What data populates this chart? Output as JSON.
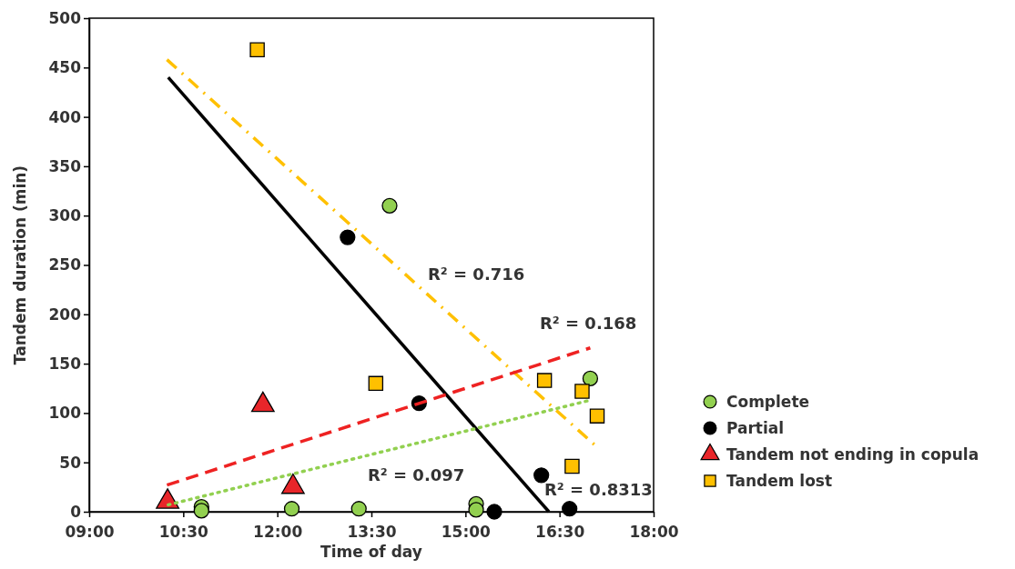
{
  "chart_data": {
    "type": "scatter",
    "xlabel": "Time of day",
    "ylabel": "Tandem duration (min)",
    "xlim": [
      9,
      18
    ],
    "xticks": [
      {
        "value": 9,
        "label": "09:00"
      },
      {
        "value": 10.5,
        "label": "10:30"
      },
      {
        "value": 12,
        "label": "12:00"
      },
      {
        "value": 13.5,
        "label": "13:30"
      },
      {
        "value": 15,
        "label": "15:00"
      },
      {
        "value": 16.5,
        "label": "16:30"
      },
      {
        "value": 18,
        "label": "18:00"
      }
    ],
    "ylim": [
      0,
      500
    ],
    "yticks": [
      0,
      50,
      100,
      150,
      200,
      250,
      300,
      350,
      400,
      450,
      500
    ],
    "legend": "right",
    "grid": false,
    "series": [
      {
        "name": "Complete",
        "marker": "circle",
        "color": "#92d050",
        "x": [
          10.79,
          10.79,
          12.23,
          13.3,
          15.17,
          15.17,
          16.99,
          13.79
        ],
        "values": [
          5,
          1,
          3,
          3,
          8,
          2,
          135,
          310
        ]
      },
      {
        "name": "Partial",
        "marker": "circle",
        "color": "#000000",
        "x": [
          13.12,
          14.26,
          15.46,
          16.21,
          16.66
        ],
        "values": [
          278,
          110,
          0,
          37,
          3
        ]
      },
      {
        "name": "Tandem not ending in copula",
        "marker": "triangle",
        "color": "#e8262a",
        "x": [
          10.25,
          11.77,
          12.25
        ],
        "values": [
          12,
          110,
          27
        ]
      },
      {
        "name": "Tandem lost",
        "marker": "square",
        "color": "#ffc000",
        "x": [
          11.68,
          13.57,
          16.26,
          16.86,
          17.1,
          16.7
        ],
        "values": [
          468,
          130,
          133,
          122,
          97,
          46
        ]
      },
      {
        "type": "line",
        "line_style": "solid",
        "color": "#000000",
        "x": [
          10.26,
          16.33
        ],
        "values": [
          440,
          0
        ]
      },
      {
        "type": "line",
        "line_style": "dashdot",
        "color": "#ffc000",
        "x": [
          10.24,
          17.09
        ],
        "values": [
          458,
          66
        ]
      },
      {
        "type": "line",
        "line_style": "dashed",
        "color": "#ee2222",
        "x": [
          10.24,
          16.99
        ],
        "values": [
          27,
          166
        ]
      },
      {
        "type": "line",
        "line_style": "dotted",
        "color": "#92d050",
        "x": [
          10.26,
          16.99
        ],
        "values": [
          7,
          113
        ]
      }
    ],
    "annotations": [
      "R² = 0.716",
      "R² = 0.168",
      "R² = 0.097",
      "R² = 0.8313"
    ]
  }
}
